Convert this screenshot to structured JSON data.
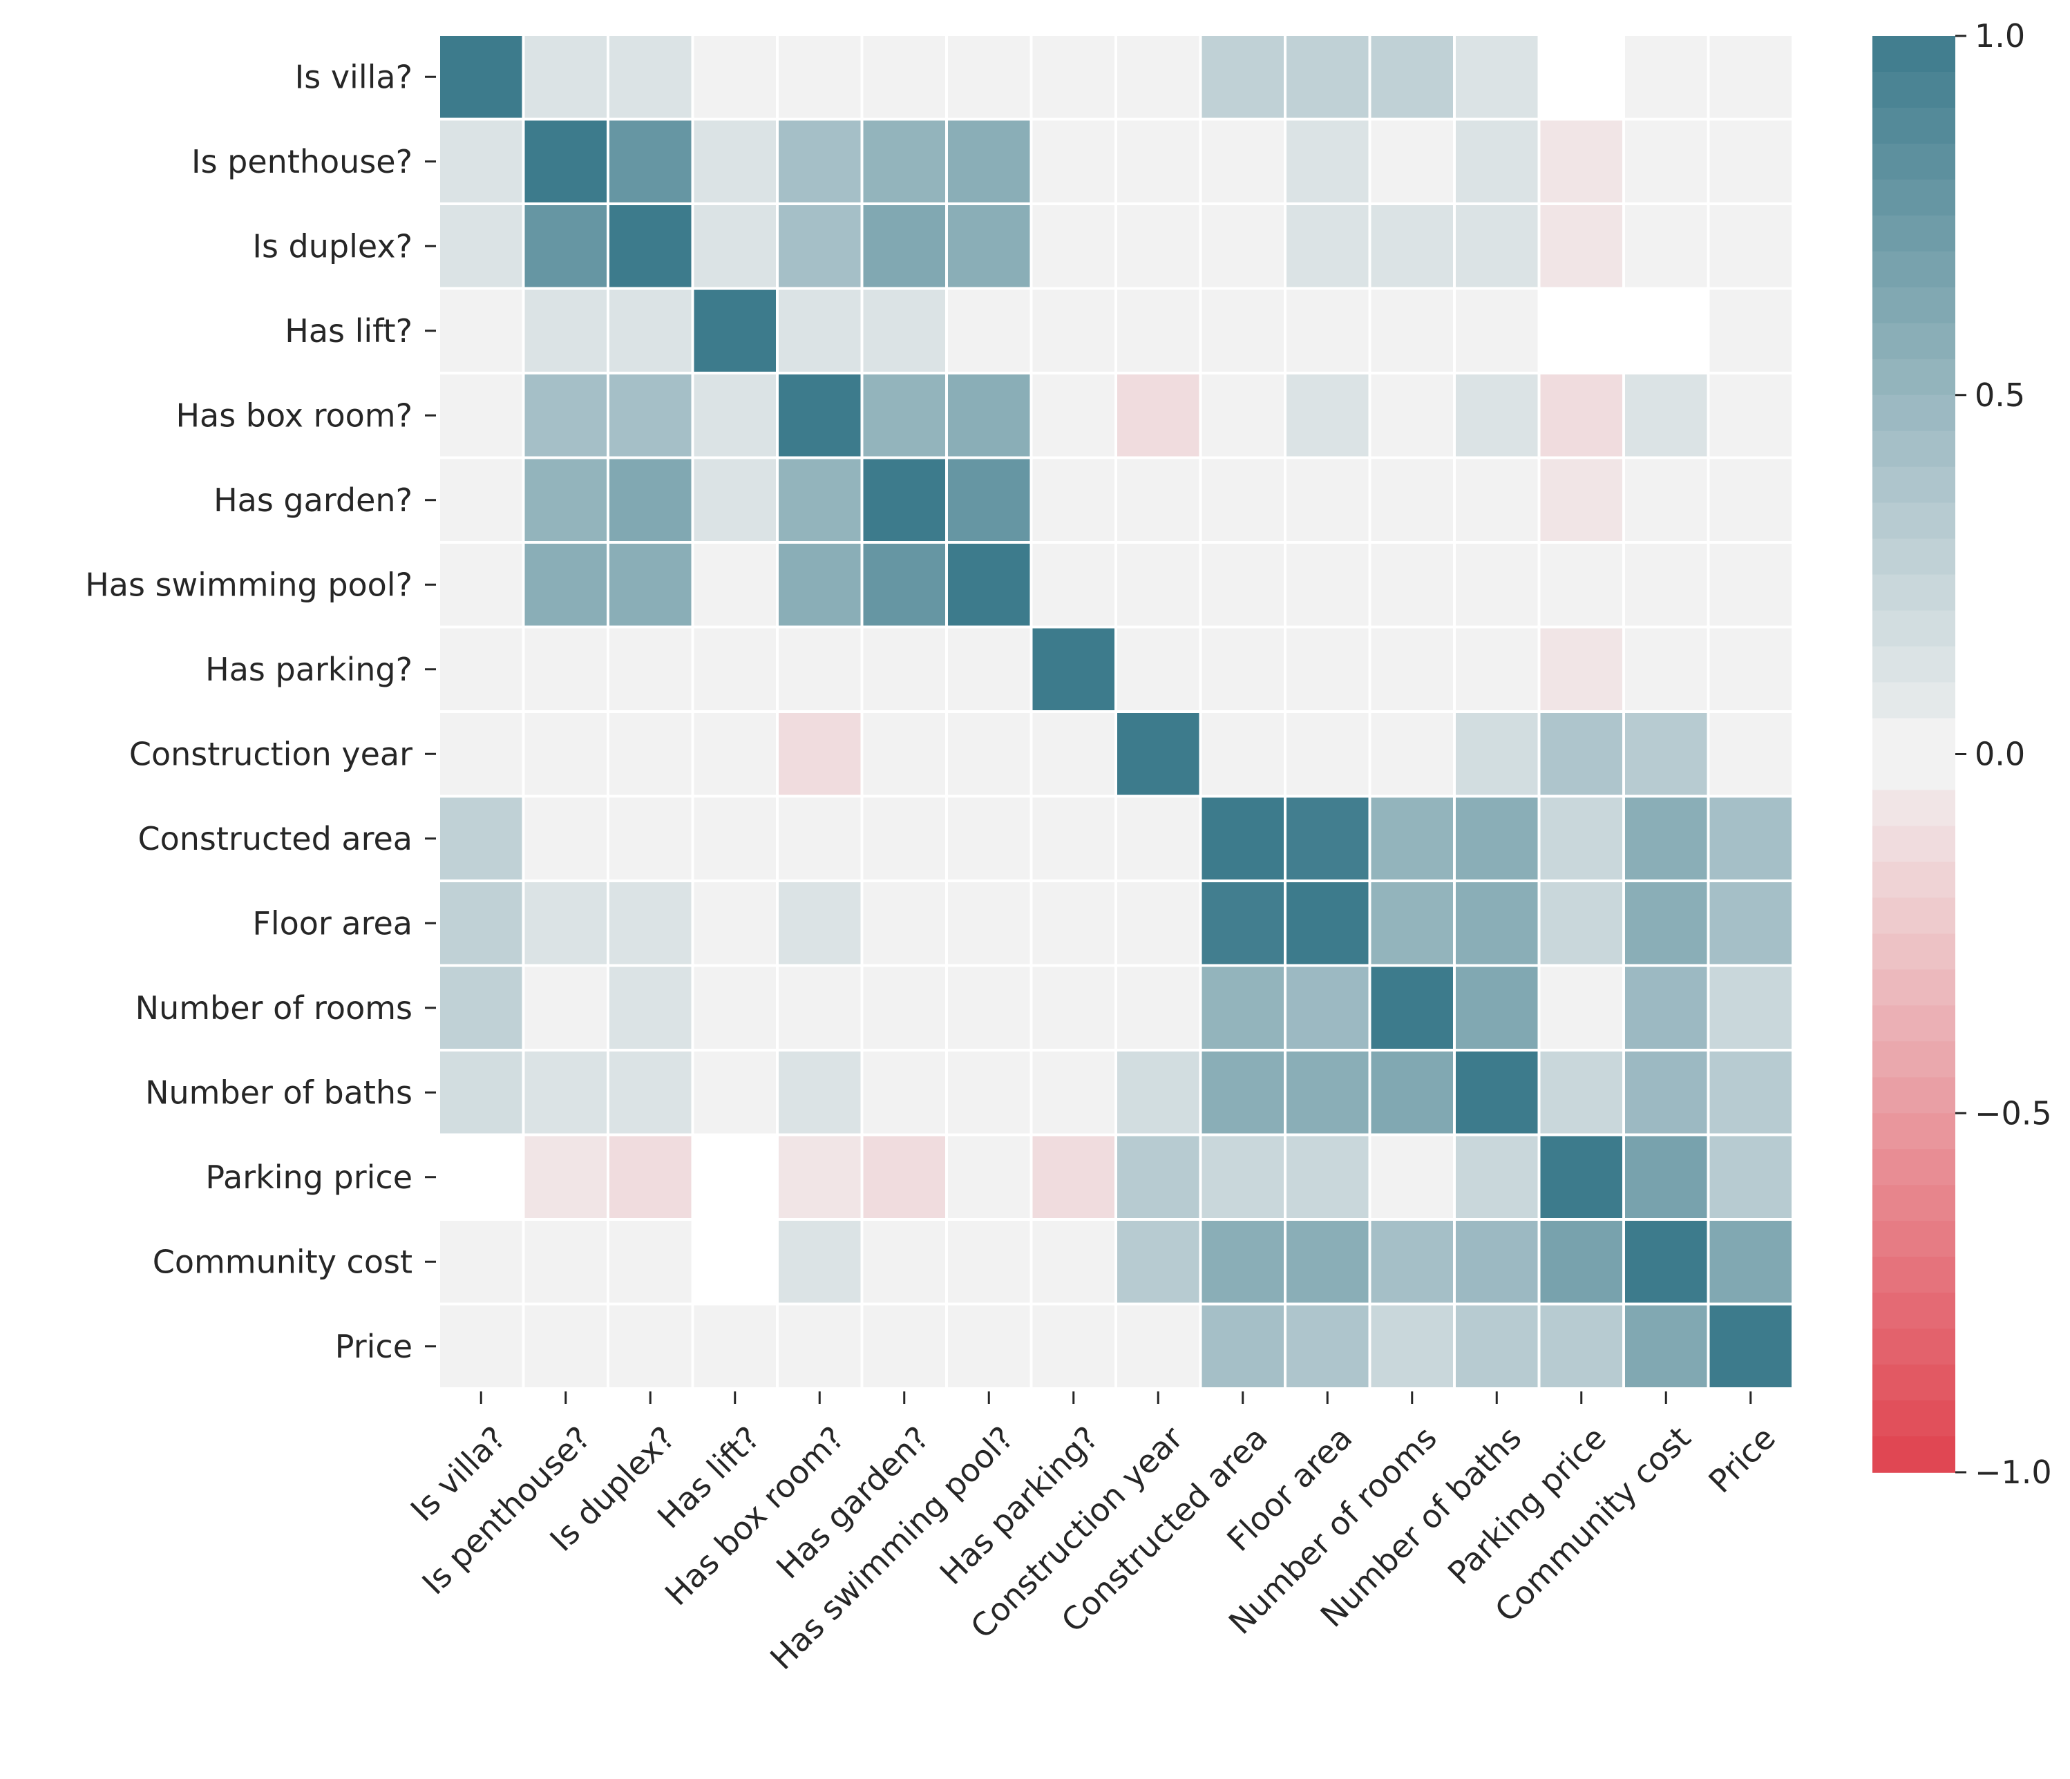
{
  "chart_data": {
    "type": "heatmap",
    "title": "",
    "xlabel": "",
    "ylabel": "",
    "labels": [
      "Is villa?",
      "Is penthouse?",
      "Is duplex?",
      "Has lift?",
      "Has box room?",
      "Has garden?",
      "Has swimming pool?",
      "Has parking?",
      "Construction year",
      "Constructed area",
      "Floor area",
      "Number of rooms",
      "Number of baths",
      "Parking price",
      "Community cost",
      "Price"
    ],
    "matrix": [
      [
        1.0,
        0.1,
        0.1,
        0.02,
        0.02,
        0.02,
        0.02,
        0.02,
        0.02,
        0.25,
        0.25,
        0.25,
        0.12,
        null,
        0.02,
        0.02
      ],
      [
        0.1,
        1.0,
        0.75,
        0.1,
        0.4,
        0.5,
        0.55,
        0.02,
        0.02,
        0.02,
        0.1,
        0.02,
        0.1,
        -0.08,
        0.02,
        0.02
      ],
      [
        0.1,
        0.75,
        1.0,
        0.1,
        0.4,
        0.6,
        0.55,
        0.02,
        0.02,
        0.02,
        0.1,
        0.1,
        0.1,
        -0.08,
        0.02,
        0.02
      ],
      [
        0.02,
        0.1,
        0.1,
        1.0,
        0.12,
        0.1,
        0.02,
        0.02,
        0.02,
        0.02,
        0.02,
        0.02,
        0.02,
        null,
        null,
        0.02
      ],
      [
        0.02,
        0.4,
        0.4,
        0.12,
        1.0,
        0.5,
        0.55,
        0.02,
        -0.12,
        0.02,
        0.1,
        0.02,
        0.1,
        -0.12,
        0.1,
        0.02
      ],
      [
        0.02,
        0.5,
        0.6,
        0.1,
        0.5,
        1.0,
        0.75,
        0.02,
        0.02,
        0.02,
        0.02,
        0.02,
        0.02,
        -0.1,
        0.02,
        0.02
      ],
      [
        0.02,
        0.55,
        0.55,
        0.02,
        0.55,
        0.75,
        1.0,
        0.02,
        0.02,
        0.02,
        0.02,
        0.02,
        0.02,
        0.02,
        0.02,
        0.02
      ],
      [
        0.02,
        0.02,
        0.02,
        0.02,
        0.02,
        0.02,
        0.02,
        1.0,
        0.02,
        0.02,
        0.02,
        0.02,
        0.02,
        -0.1,
        0.02,
        0.02
      ],
      [
        0.02,
        0.02,
        0.02,
        0.02,
        -0.12,
        0.02,
        0.02,
        0.02,
        1.0,
        0.02,
        0.02,
        0.02,
        0.15,
        0.35,
        0.3,
        0.02
      ],
      [
        0.25,
        0.02,
        0.02,
        0.02,
        0.02,
        0.02,
        0.02,
        0.02,
        0.02,
        1.0,
        0.98,
        0.5,
        0.55,
        0.2,
        0.55,
        0.4
      ],
      [
        0.25,
        0.1,
        0.1,
        0.02,
        0.1,
        0.02,
        0.02,
        0.02,
        0.02,
        0.98,
        1.0,
        0.5,
        0.55,
        0.2,
        0.55,
        0.4
      ],
      [
        0.25,
        0.02,
        0.1,
        0.02,
        0.02,
        0.02,
        0.02,
        0.02,
        0.02,
        0.5,
        0.45,
        1.0,
        0.6,
        0.02,
        0.45,
        0.2
      ],
      [
        0.15,
        0.12,
        0.12,
        0.02,
        0.1,
        0.02,
        0.02,
        0.02,
        0.15,
        0.55,
        0.55,
        0.6,
        1.0,
        0.2,
        0.45,
        0.3
      ],
      [
        null,
        -0.1,
        -0.12,
        null,
        -0.1,
        -0.12,
        0.02,
        -0.12,
        0.3,
        0.2,
        0.2,
        0.02,
        0.2,
        1.0,
        0.65,
        0.3
      ],
      [
        0.02,
        0.02,
        0.02,
        null,
        0.1,
        0.02,
        0.02,
        0.02,
        0.3,
        0.55,
        0.55,
        0.4,
        0.45,
        0.65,
        1.0,
        0.6
      ],
      [
        0.02,
        0.02,
        0.02,
        0.02,
        0.02,
        0.02,
        0.02,
        0.02,
        0.02,
        0.4,
        0.35,
        0.2,
        0.3,
        0.3,
        0.6,
        1.0
      ]
    ],
    "vmin": -1.0,
    "vmax": 1.0,
    "colorbar_ticks": [
      1.0,
      0.5,
      0.0,
      -0.5,
      -1.0
    ],
    "colorbar_tick_labels": [
      "1.0",
      "0.5",
      "0.0",
      "−0.5",
      "−1.0"
    ],
    "colors": {
      "positive": "#3d7b8c",
      "negative": "#e0434f",
      "neutral": "#f2f2f2"
    },
    "legend": "right"
  }
}
